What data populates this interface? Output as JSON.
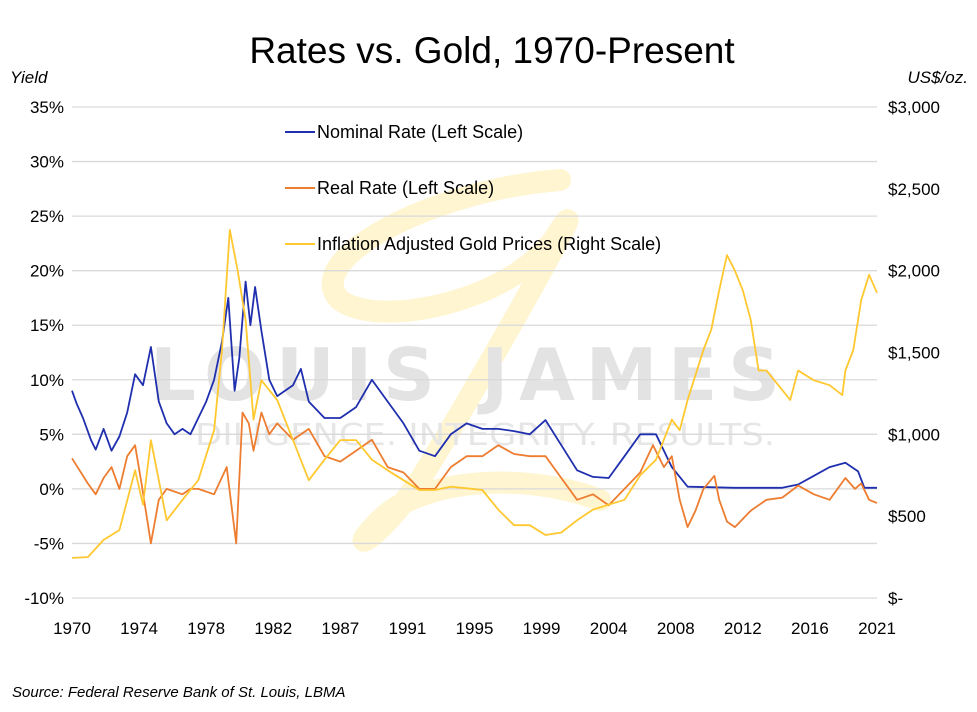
{
  "chart_data": {
    "type": "line",
    "title": "Rates vs. Gold, 1970-Present",
    "ylabel_left": "Yield",
    "ylabel_right": "US$/oz.",
    "source": "Source: Federal Reserve Bank of St. Louis, LBMA",
    "watermark": {
      "main": "LOUIS JAMES",
      "tagline": "DILIGENCE. INTEGRITY. RESULTS."
    },
    "x_tick_labels": [
      "1970",
      "1974",
      "1978",
      "1982",
      "1987",
      "1991",
      "1995",
      "1999",
      "2004",
      "2008",
      "2012",
      "2016",
      "2021"
    ],
    "xlim": [
      1970,
      2021
    ],
    "ylim_left": [
      -10,
      35
    ],
    "y_left_ticks": [
      "-10%",
      "-5%",
      "0%",
      "5%",
      "10%",
      "15%",
      "20%",
      "25%",
      "30%",
      "35%"
    ],
    "y_left_values": [
      -10,
      -5,
      0,
      5,
      10,
      15,
      20,
      25,
      30,
      35
    ],
    "ylim_right": [
      0,
      3000
    ],
    "y_right_ticks": [
      "$-",
      "$500",
      "$1,000",
      "$1,500",
      "$2,000",
      "$2,500",
      "$3,000"
    ],
    "y_right_values": [
      0,
      500,
      1000,
      1500,
      2000,
      2500,
      3000
    ],
    "grid": true,
    "legend_position": "top-center",
    "series": [
      {
        "name": "Nominal Rate (Left Scale)",
        "axis": "left",
        "color": "#1f2fae",
        "points": [
          [
            1970,
            9
          ],
          [
            1970.3,
            7.8
          ],
          [
            1970.7,
            6.5
          ],
          [
            1971.2,
            4.5
          ],
          [
            1971.5,
            3.6
          ],
          [
            1972,
            5.5
          ],
          [
            1972.5,
            3.5
          ],
          [
            1973,
            4.8
          ],
          [
            1973.5,
            7
          ],
          [
            1974,
            10.5
          ],
          [
            1974.5,
            9.5
          ],
          [
            1975,
            13
          ],
          [
            1975.5,
            8
          ],
          [
            1976,
            6
          ],
          [
            1976.5,
            5
          ],
          [
            1977,
            5.5
          ],
          [
            1977.5,
            5
          ],
          [
            1978,
            6.5
          ],
          [
            1978.5,
            8
          ],
          [
            1979,
            10
          ],
          [
            1979.5,
            13.5
          ],
          [
            1979.9,
            17.5
          ],
          [
            1980.3,
            9
          ],
          [
            1980.6,
            12
          ],
          [
            1981,
            19
          ],
          [
            1981.3,
            15
          ],
          [
            1981.6,
            18.5
          ],
          [
            1982,
            14.5
          ],
          [
            1982.5,
            10
          ],
          [
            1983,
            8.5
          ],
          [
            1984,
            9.5
          ],
          [
            1984.5,
            11
          ],
          [
            1985,
            8
          ],
          [
            1986,
            6.5
          ],
          [
            1987,
            6.5
          ],
          [
            1988,
            7.5
          ],
          [
            1989,
            10
          ],
          [
            1990,
            8
          ],
          [
            1991,
            6
          ],
          [
            1992,
            3.5
          ],
          [
            1993,
            3
          ],
          [
            1994,
            5
          ],
          [
            1995,
            6
          ],
          [
            1996,
            5.5
          ],
          [
            1997,
            5.5
          ],
          [
            1998,
            5.3
          ],
          [
            1999,
            5
          ],
          [
            2000,
            6.3
          ],
          [
            2001,
            4
          ],
          [
            2002,
            1.7
          ],
          [
            2003,
            1.1
          ],
          [
            2004,
            1
          ],
          [
            2005,
            3
          ],
          [
            2006,
            5
          ],
          [
            2007,
            5
          ],
          [
            2008,
            2
          ],
          [
            2009,
            0.2
          ],
          [
            2012,
            0.1
          ],
          [
            2015,
            0.1
          ],
          [
            2016,
            0.4
          ],
          [
            2017,
            1.2
          ],
          [
            2018,
            2
          ],
          [
            2019,
            2.4
          ],
          [
            2019.8,
            1.6
          ],
          [
            2020.2,
            0.1
          ],
          [
            2021,
            0.1
          ]
        ]
      },
      {
        "name": "Real Rate (Left Scale)",
        "axis": "left",
        "color": "#ed7d31",
        "points": [
          [
            1970,
            2.8
          ],
          [
            1971,
            0.5
          ],
          [
            1971.5,
            -0.5
          ],
          [
            1972,
            1
          ],
          [
            1972.5,
            2
          ],
          [
            1973,
            0
          ],
          [
            1973.5,
            3
          ],
          [
            1974,
            4
          ],
          [
            1974.4,
            0.5
          ],
          [
            1975,
            -5
          ],
          [
            1975.5,
            -1
          ],
          [
            1976,
            0
          ],
          [
            1977,
            -0.5
          ],
          [
            1977.5,
            0
          ],
          [
            1978,
            0
          ],
          [
            1979,
            -0.5
          ],
          [
            1979.8,
            2
          ],
          [
            1980.4,
            -5
          ],
          [
            1980.8,
            7
          ],
          [
            1981.2,
            6
          ],
          [
            1981.5,
            3.5
          ],
          [
            1982,
            7
          ],
          [
            1982.5,
            5
          ],
          [
            1983,
            6
          ],
          [
            1984,
            4.5
          ],
          [
            1985,
            5.5
          ],
          [
            1986,
            3
          ],
          [
            1987,
            2.5
          ],
          [
            1988,
            3.5
          ],
          [
            1989,
            4.5
          ],
          [
            1990,
            2
          ],
          [
            1991,
            1.5
          ],
          [
            1992,
            0
          ],
          [
            1993,
            0
          ],
          [
            1994,
            2
          ],
          [
            1995,
            3
          ],
          [
            1996,
            3
          ],
          [
            1997,
            4
          ],
          [
            1998,
            3.2
          ],
          [
            1999,
            3
          ],
          [
            2000,
            3
          ],
          [
            2001,
            1
          ],
          [
            2002,
            -1
          ],
          [
            2003,
            -0.5
          ],
          [
            2004,
            -1.5
          ],
          [
            2005,
            0
          ],
          [
            2006,
            1.5
          ],
          [
            2006.8,
            4
          ],
          [
            2007.5,
            2
          ],
          [
            2008,
            3
          ],
          [
            2008.5,
            -1
          ],
          [
            2009,
            -3.5
          ],
          [
            2009.5,
            -2
          ],
          [
            2010,
            0
          ],
          [
            2010.7,
            1.2
          ],
          [
            2011,
            -1
          ],
          [
            2011.5,
            -3
          ],
          [
            2012,
            -3.5
          ],
          [
            2013,
            -2
          ],
          [
            2014,
            -1
          ],
          [
            2015,
            -0.8
          ],
          [
            2016,
            0.3
          ],
          [
            2017,
            -0.5
          ],
          [
            2018,
            -1
          ],
          [
            2019,
            1
          ],
          [
            2019.6,
            0
          ],
          [
            2020,
            0.5
          ],
          [
            2020.5,
            -1
          ],
          [
            2021,
            -1.3
          ]
        ]
      },
      {
        "name": "Inflation Adjusted Gold Prices (Right Scale)",
        "axis": "right",
        "color": "#ffc830",
        "points": [
          [
            1970,
            245
          ],
          [
            1971,
            250
          ],
          [
            1972,
            355
          ],
          [
            1973,
            415
          ],
          [
            1974,
            780
          ],
          [
            1974.5,
            570
          ],
          [
            1975,
            965
          ],
          [
            1975.5,
            720
          ],
          [
            1976,
            475
          ],
          [
            1977,
            600
          ],
          [
            1978,
            720
          ],
          [
            1979,
            1025
          ],
          [
            1979.5,
            1515
          ],
          [
            1980,
            2250
          ],
          [
            1980.5,
            2000
          ],
          [
            1981,
            1700
          ],
          [
            1981.5,
            1090
          ],
          [
            1982,
            1330
          ],
          [
            1983,
            1210
          ],
          [
            1984,
            965
          ],
          [
            1985,
            720
          ],
          [
            1986,
            845
          ],
          [
            1987,
            965
          ],
          [
            1988,
            965
          ],
          [
            1989,
            845
          ],
          [
            1990,
            780
          ],
          [
            1991,
            720
          ],
          [
            1992,
            660
          ],
          [
            1993,
            660
          ],
          [
            1994,
            680
          ],
          [
            1995,
            670
          ],
          [
            1996,
            660
          ],
          [
            1997,
            540
          ],
          [
            1998,
            445
          ],
          [
            1999,
            445
          ],
          [
            2000,
            385
          ],
          [
            2001,
            400
          ],
          [
            2002,
            475
          ],
          [
            2003,
            540
          ],
          [
            2004,
            570
          ],
          [
            2005,
            600
          ],
          [
            2006,
            750
          ],
          [
            2007,
            845
          ],
          [
            2008,
            1090
          ],
          [
            2008.5,
            1025
          ],
          [
            2009,
            1210
          ],
          [
            2010,
            1515
          ],
          [
            2010.5,
            1640
          ],
          [
            2011,
            1880
          ],
          [
            2011.5,
            2095
          ],
          [
            2012,
            2000
          ],
          [
            2012.5,
            1880
          ],
          [
            2013,
            1700
          ],
          [
            2013.5,
            1390
          ],
          [
            2014,
            1390
          ],
          [
            2015,
            1270
          ],
          [
            2015.5,
            1210
          ],
          [
            2016,
            1390
          ],
          [
            2017,
            1330
          ],
          [
            2018,
            1300
          ],
          [
            2018.8,
            1240
          ],
          [
            2019,
            1390
          ],
          [
            2019.5,
            1515
          ],
          [
            2020,
            1820
          ],
          [
            2020.5,
            1975
          ],
          [
            2021,
            1865
          ]
        ]
      }
    ]
  }
}
